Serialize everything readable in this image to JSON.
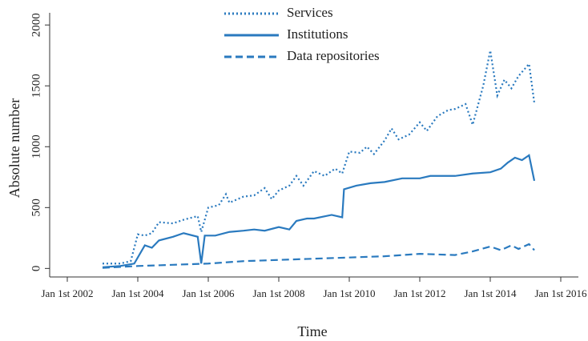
{
  "chart_data": {
    "type": "line",
    "xlabel": "Time",
    "ylabel": "Absolute number",
    "xlim": [
      2002,
      2016
    ],
    "xticks": [
      {
        "value": 2002,
        "label": "Jan 1st 2002"
      },
      {
        "value": 2004,
        "label": "Jan 1st 2004"
      },
      {
        "value": 2006,
        "label": "Jan 1st 2006"
      },
      {
        "value": 2008,
        "label": "Jan 1st 2008"
      },
      {
        "value": 2010,
        "label": "Jan 1st 2010"
      },
      {
        "value": 2012,
        "label": "Jan 1st 2012"
      },
      {
        "value": 2014,
        "label": "Jan 1st 2014"
      },
      {
        "value": 2016,
        "label": "Jan 1st 2016"
      }
    ],
    "ylim": [
      -70,
      2100
    ],
    "yticks": [
      0,
      500,
      1000,
      1500,
      2000
    ],
    "legend": "top",
    "series": [
      {
        "name": "Services",
        "color": "#2a7abf",
        "dash": "dotted",
        "x": [
          2003.0,
          2003.5,
          2003.8,
          2004.0,
          2004.2,
          2004.4,
          2004.6,
          2005.0,
          2005.3,
          2005.7,
          2005.8,
          2006.0,
          2006.3,
          2006.5,
          2006.6,
          2007.0,
          2007.3,
          2007.6,
          2007.8,
          2008.0,
          2008.3,
          2008.5,
          2008.7,
          2009.0,
          2009.3,
          2009.6,
          2009.8,
          2010.0,
          2010.3,
          2010.5,
          2010.7,
          2011.0,
          2011.2,
          2011.4,
          2011.7,
          2012.0,
          2012.2,
          2012.5,
          2012.8,
          2013.0,
          2013.3,
          2013.5,
          2013.8,
          2014.0,
          2014.2,
          2014.4,
          2014.6,
          2014.8,
          2015.1,
          2015.25
        ],
        "values": [
          40,
          40,
          60,
          280,
          270,
          290,
          380,
          370,
          400,
          430,
          300,
          500,
          520,
          610,
          540,
          590,
          600,
          660,
          570,
          640,
          680,
          760,
          680,
          800,
          760,
          820,
          780,
          960,
          950,
          1000,
          940,
          1050,
          1150,
          1060,
          1100,
          1200,
          1130,
          1250,
          1300,
          1310,
          1350,
          1180,
          1500,
          1790,
          1420,
          1550,
          1480,
          1580,
          1680,
          1360
        ]
      },
      {
        "name": "Institutions",
        "color": "#2a7abf",
        "dash": "solid",
        "x": [
          2003.0,
          2003.5,
          2003.9,
          2004.2,
          2004.4,
          2004.6,
          2005.0,
          2005.3,
          2005.7,
          2005.8,
          2005.9,
          2006.2,
          2006.6,
          2007.0,
          2007.3,
          2007.6,
          2008.0,
          2008.3,
          2008.5,
          2008.8,
          2009.0,
          2009.5,
          2009.8,
          2009.85,
          2010.2,
          2010.6,
          2011.0,
          2011.5,
          2012.0,
          2012.3,
          2012.8,
          2013.0,
          2013.5,
          2014.0,
          2014.3,
          2014.5,
          2014.7,
          2014.9,
          2015.1,
          2015.25
        ],
        "values": [
          10,
          20,
          40,
          190,
          170,
          230,
          260,
          290,
          260,
          40,
          270,
          270,
          300,
          310,
          320,
          310,
          340,
          320,
          390,
          410,
          410,
          440,
          420,
          650,
          680,
          700,
          710,
          740,
          740,
          760,
          760,
          760,
          780,
          790,
          820,
          870,
          910,
          890,
          930,
          720
        ]
      },
      {
        "name": "Data repositories",
        "color": "#2a7abf",
        "dash": "dashed",
        "x": [
          2003.0,
          2004.0,
          2005.0,
          2006.0,
          2007.0,
          2008.0,
          2009.0,
          2010.0,
          2010.5,
          2011.0,
          2012.0,
          2013.0,
          2013.5,
          2014.0,
          2014.3,
          2014.6,
          2014.8,
          2015.1,
          2015.25
        ],
        "values": [
          5,
          20,
          30,
          40,
          60,
          70,
          80,
          90,
          95,
          100,
          120,
          110,
          140,
          180,
          150,
          190,
          160,
          200,
          150
        ]
      }
    ]
  }
}
